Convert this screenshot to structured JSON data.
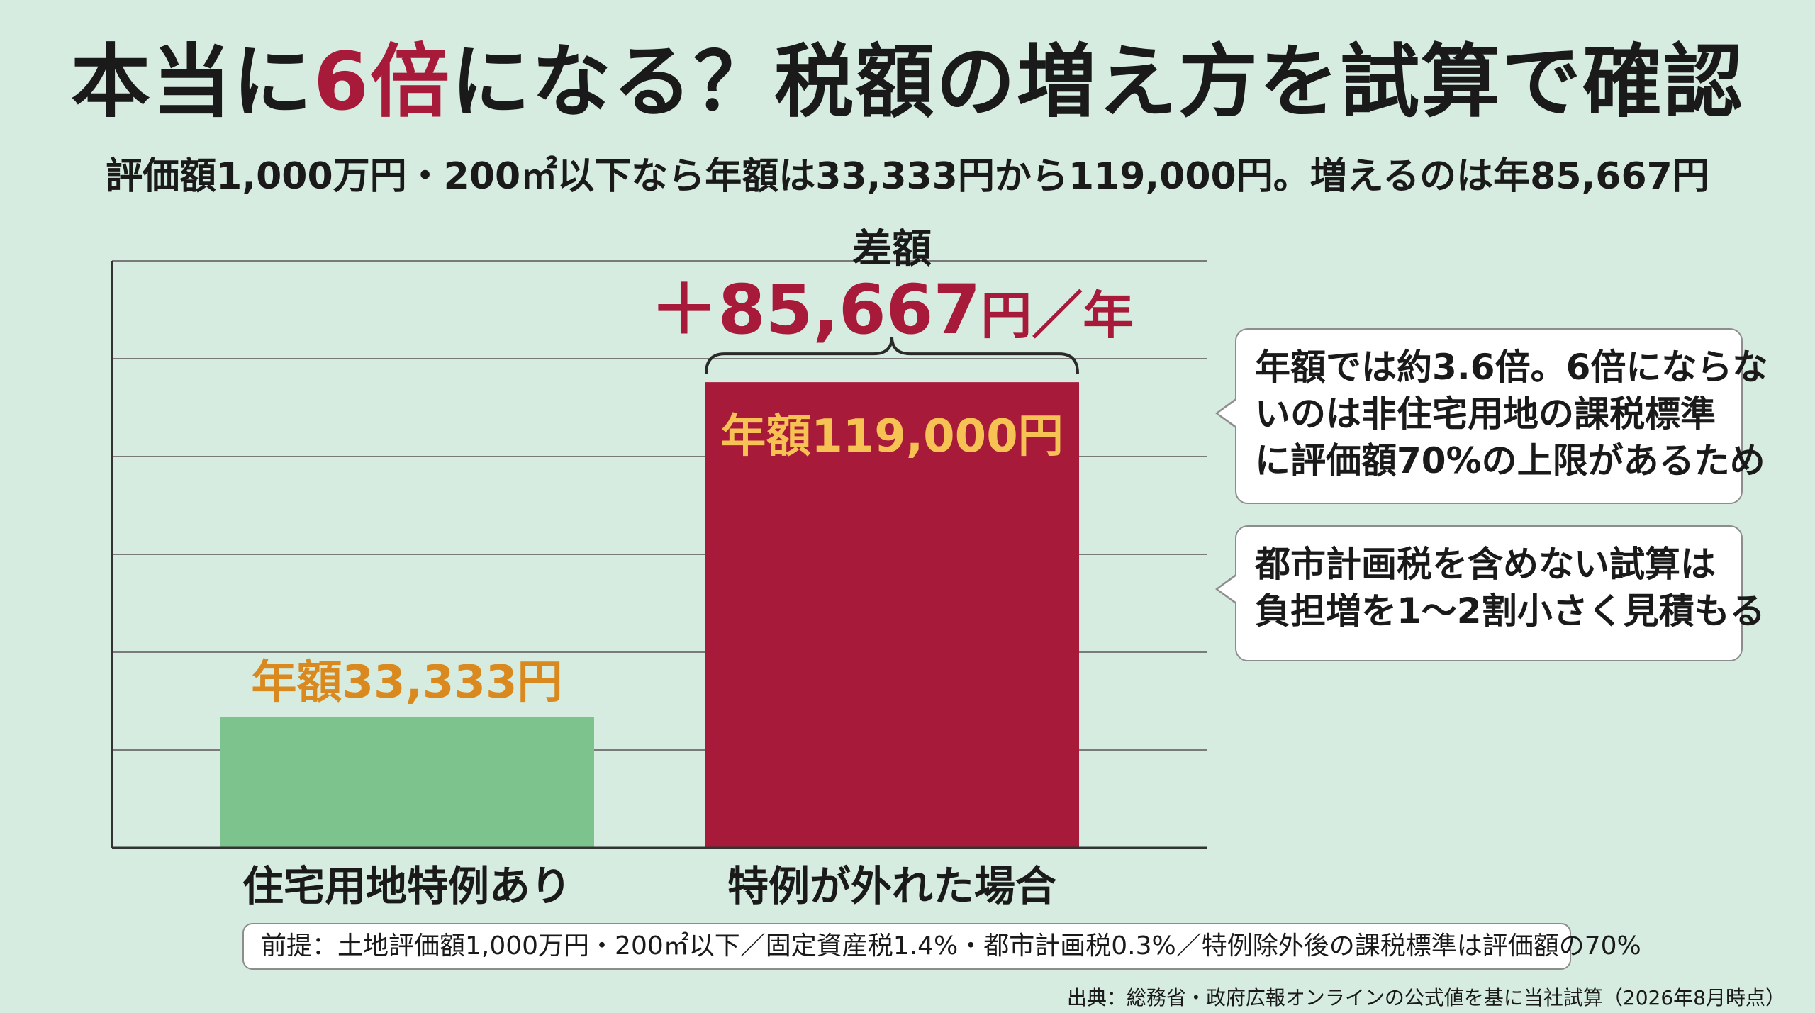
{
  "title": {
    "part1": "本当に",
    "accent": "6倍",
    "part2": "になる？税額の増え方を試算で確認"
  },
  "subtitle": "評価額1,000万円・200㎡以下なら年額は33,333円から119,000円。増えるのは年85,667円",
  "chart_data": {
    "type": "bar",
    "categories": [
      "住宅用地特例あり",
      "特例が外れた場合"
    ],
    "values": [
      33333,
      119000
    ],
    "data_labels": [
      "年額33,333円",
      "年額119,000円"
    ],
    "ylim": [
      0,
      150000
    ],
    "grid": true,
    "colors": [
      "#7cc38d",
      "#a81a3a"
    ],
    "label_color": "#d9891e",
    "label_color_inside": "#f6c254",
    "difference": {
      "caption": "差額",
      "value_text": "＋85,667",
      "unit_text": "円／年",
      "value": 85667,
      "color": "#a81a3a"
    }
  },
  "callouts": [
    {
      "lines": [
        "年額では約3.6倍。6倍にならな",
        "いのは非住宅用地の課税標準",
        "に評価額70%の上限があるため"
      ]
    },
    {
      "lines": [
        "都市計画税を含めない試算は",
        "負担増を1〜2割小さく見積もる"
      ]
    }
  ],
  "premise": "前提：土地評価額1,000万円・200㎡以下／固定資産税1.4%・都市計画税0.3%／特例除外後の課税標準は評価額の70%",
  "source": "出典：総務省・政府広報オンラインの公式値を基に当社試算（2026年8月時点）"
}
